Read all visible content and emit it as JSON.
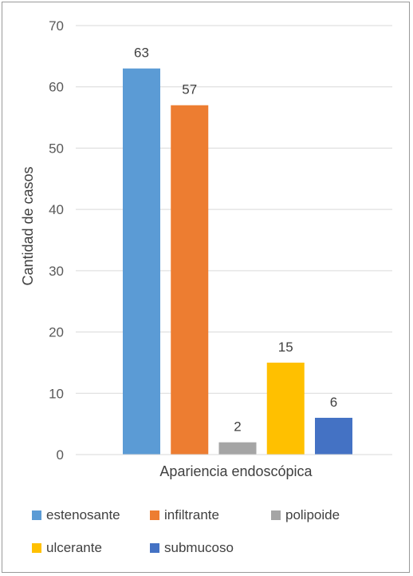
{
  "chart_data": {
    "type": "bar",
    "title": "",
    "xlabel": "Apariencia endoscópica",
    "ylabel": "Cantidad de casos",
    "ylim": [
      0,
      70
    ],
    "yticks": [
      "0",
      "10",
      "20",
      "30",
      "40",
      "50",
      "60",
      "70"
    ],
    "grid": true,
    "legend_position": "bottom",
    "series": [
      {
        "name": "estenosante",
        "values": [
          63
        ],
        "color": "#5B9BD5"
      },
      {
        "name": "infiltrante",
        "values": [
          57
        ],
        "color": "#ED7D31"
      },
      {
        "name": "polipoide",
        "values": [
          2
        ],
        "color": "#A5A5A5"
      },
      {
        "name": "ulcerante",
        "values": [
          15
        ],
        "color": "#FFC000"
      },
      {
        "name": "submucoso",
        "values": [
          6
        ],
        "color": "#4472C4"
      }
    ]
  }
}
